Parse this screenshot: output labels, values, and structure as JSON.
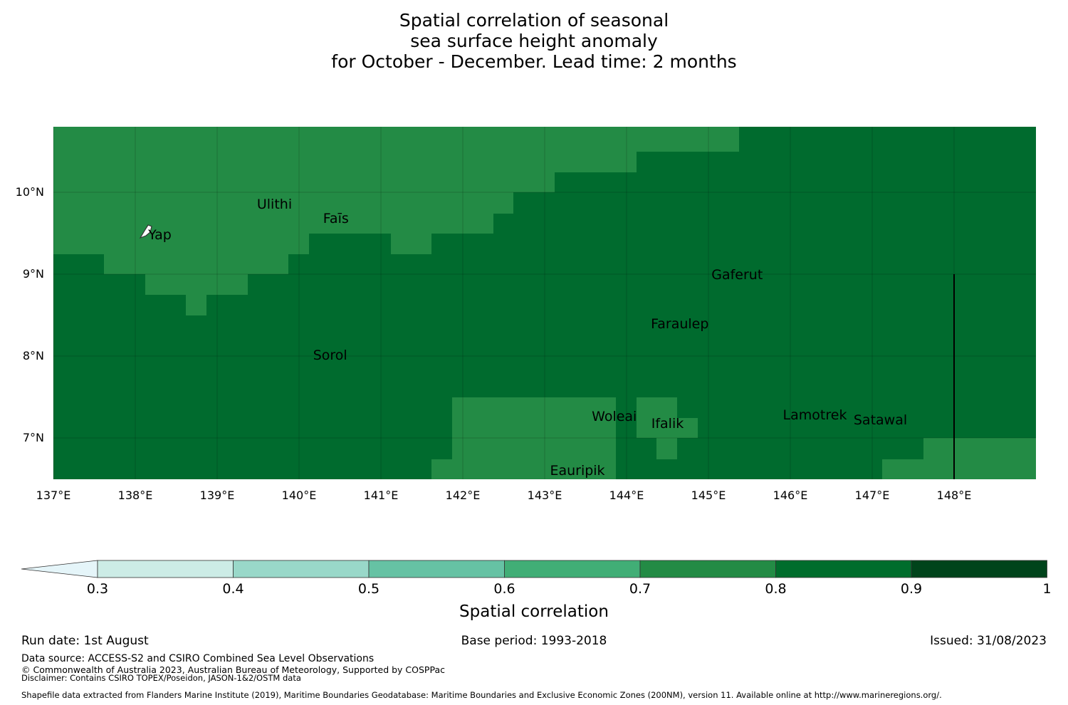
{
  "title": {
    "line1": "Spatial correlation of seasonal",
    "line2": "sea surface height anomaly",
    "line3": "for October - December. Lead time: 2 months"
  },
  "map": {
    "lon_range": [
      137,
      149
    ],
    "lat_range": [
      6.5,
      10.8
    ],
    "x_ticks": [
      "137°E",
      "138°E",
      "139°E",
      "140°E",
      "141°E",
      "142°E",
      "143°E",
      "144°E",
      "145°E",
      "146°E",
      "147°E",
      "148°E"
    ],
    "y_ticks": [
      "10°N",
      "9°N",
      "8°N",
      "7°N"
    ],
    "base_class_color": "#006b2e",
    "lower_class_color": "#238b45",
    "gridline_color": "#000000",
    "places": [
      {
        "name": "Ulithi",
        "lon": 139.7,
        "lat": 9.85
      },
      {
        "name": "Faīs",
        "lon": 140.45,
        "lat": 9.68
      },
      {
        "name": "Yap",
        "lon": 138.3,
        "lat": 9.48
      },
      {
        "name": "Gaferut",
        "lon": 145.35,
        "lat": 8.99
      },
      {
        "name": "Faraulep",
        "lon": 144.65,
        "lat": 8.39
      },
      {
        "name": "Sorol",
        "lon": 140.38,
        "lat": 8.01
      },
      {
        "name": "Woleai",
        "lon": 143.85,
        "lat": 7.26
      },
      {
        "name": "Ifalik",
        "lon": 144.5,
        "lat": 7.17
      },
      {
        "name": "Lamotrek",
        "lon": 146.3,
        "lat": 7.28
      },
      {
        "name": "Satawal",
        "lon": 147.1,
        "lat": 7.22
      },
      {
        "name": "Eauripik",
        "lon": 143.4,
        "lat": 6.6
      }
    ]
  },
  "colorbar": {
    "ticks": [
      "0.3",
      "0.4",
      "0.5",
      "0.6",
      "0.7",
      "0.8",
      "0.9",
      "1"
    ],
    "colors": [
      "#e5f5f9",
      "#ccece6",
      "#99d8c9",
      "#66c2a4",
      "#41ae76",
      "#238b45",
      "#006d2c",
      "#00441b"
    ],
    "title": "Spatial correlation"
  },
  "footer": {
    "run_date": "Run date: 1st August",
    "base_period": "Base period: 1993-2018",
    "issued": "Issued: 31/08/2023",
    "data_source": "Data source: ACCESS-S2 and CSIRO Combined Sea Level Observations",
    "copyright": "© Commonwealth of Australia 2023, Australian Bureau of Meteorology, Supported by COSPPac",
    "disclaimer": "Disclaimer: Contains CSIRO TOPEX/Poseidon, JASON-1&2/OSTM data",
    "shapefile": "Shapefile data extracted from Flanders Marine Institute (2019), Maritime Boundaries Geodatabase: Maritime Boundaries and Exclusive Economic Zones (200NM), version 11. Available online at http://www.marineregions.org/."
  }
}
